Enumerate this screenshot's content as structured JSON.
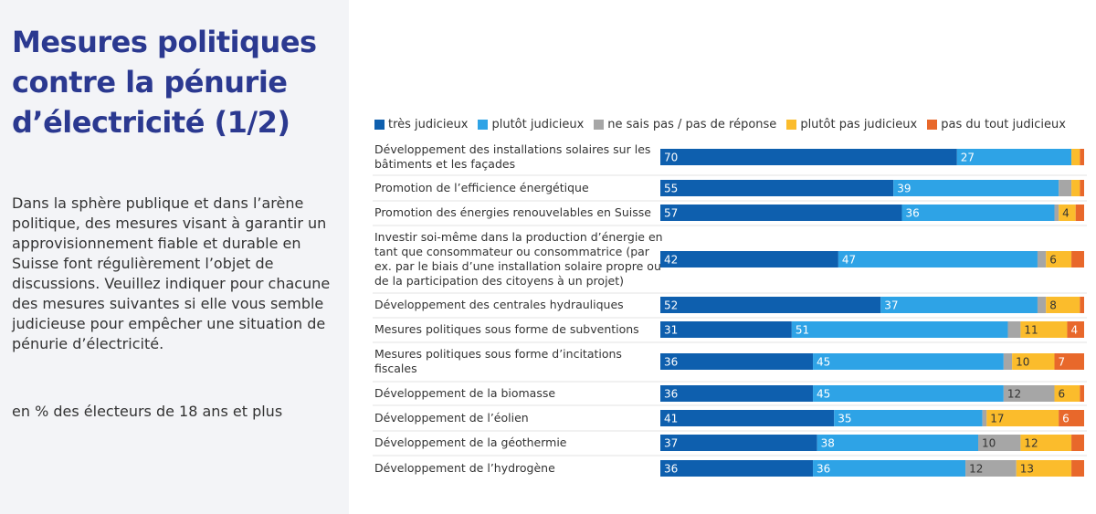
{
  "page": {
    "title": "Mesures politiques contre la pénurie d’électricité (1/2)",
    "description": "Dans la sphère publique et dans l’arène politique, des mesures visant à garantir un approvisionnement fiable et durable en Suisse font régulièrement l’objet de discussions. Veuillez indiquer pour chacune des mesures suivantes si elle vous semble judicieuse pour empêcher une situation de pénurie d’électricité.",
    "unit_note": "en % des électeurs de 18 ans et plus"
  },
  "colors": {
    "panel_bg": "#f3f4f7",
    "title": "#2b3990",
    "series": [
      "#0e5fae",
      "#2ea3e6",
      "#a6a6a6",
      "#fbbc2c",
      "#e8682b"
    ]
  },
  "chart_data": {
    "type": "bar",
    "orientation": "horizontal",
    "stacked": true,
    "percent": true,
    "xlim": [
      0,
      100
    ],
    "legend_position": "top",
    "grid": false,
    "categories": [
      "Développement des installations solaires sur les bâtiments et les façades",
      "Promotion de l’efficience énergétique",
      "Promotion des énergies renouvelables en Suisse",
      "Investir soi-même dans la production d’énergie en tant que consommateur ou consommatrice (par ex. par le biais d’une installation solaire propre ou de la participation des citoyens à un projet)",
      "Développement des centrales hydrauliques",
      "Mesures politiques sous forme de subventions",
      "Mesures politiques sous forme d’incitations fiscales",
      "Développement de la biomasse",
      "Développement de l’éolien",
      "Développement de la géothermie",
      "Développement de l’hydrogène"
    ],
    "category_lines": [
      [
        "Développement des installations solaires sur les",
        "bâtiments et les façades"
      ],
      [
        "Promotion de l’efficience énergétique"
      ],
      [
        "Promotion des énergies renouvelables en Suisse"
      ],
      [
        "Investir soi-même dans la production d’énergie en",
        "tant que consommateur ou consommatrice (par",
        "ex. par le biais d’une installation solaire propre ou",
        "de la participation des citoyens à un projet)"
      ],
      [
        "Développement des centrales hydrauliques"
      ],
      [
        "Mesures politiques sous forme de subventions"
      ],
      [
        "Mesures politiques sous forme d’incitations",
        "fiscales"
      ],
      [
        "Développement de la biomasse"
      ],
      [
        "Développement de l’éolien"
      ],
      [
        "Développement de la géothermie"
      ],
      [
        "Développement de l’hydrogène"
      ]
    ],
    "series": [
      {
        "name": "très judicieux",
        "values": [
          70,
          55,
          57,
          42,
          52,
          31,
          36,
          36,
          41,
          37,
          36
        ]
      },
      {
        "name": "plutôt judicieux",
        "values": [
          27,
          39,
          36,
          47,
          37,
          51,
          45,
          45,
          35,
          38,
          36
        ]
      },
      {
        "name": "ne sais pas / pas de réponse",
        "values": [
          0,
          3,
          1,
          2,
          2,
          3,
          2,
          12,
          1,
          10,
          12
        ]
      },
      {
        "name": "plutôt pas judicieux",
        "values": [
          2,
          2,
          4,
          6,
          8,
          11,
          10,
          6,
          17,
          12,
          13
        ]
      },
      {
        "name": "pas du tout judicieux",
        "values": [
          1,
          1,
          2,
          3,
          1,
          4,
          7,
          1,
          6,
          3,
          3
        ]
      }
    ],
    "value_labels": [
      [
        "70",
        "27",
        "",
        "",
        ""
      ],
      [
        "55",
        "39",
        "",
        "",
        ""
      ],
      [
        "57",
        "36",
        "",
        "4",
        ""
      ],
      [
        "42",
        "47",
        "",
        "6",
        ""
      ],
      [
        "52",
        "37",
        "",
        "8",
        ""
      ],
      [
        "31",
        "51",
        "",
        "11",
        "4"
      ],
      [
        "36",
        "45",
        "",
        "10",
        "7"
      ],
      [
        "36",
        "45",
        "12",
        "6",
        ""
      ],
      [
        "41",
        "35",
        "",
        "17",
        "6"
      ],
      [
        "37",
        "38",
        "10",
        "12",
        ""
      ],
      [
        "36",
        "36",
        "12",
        "13",
        ""
      ]
    ]
  }
}
